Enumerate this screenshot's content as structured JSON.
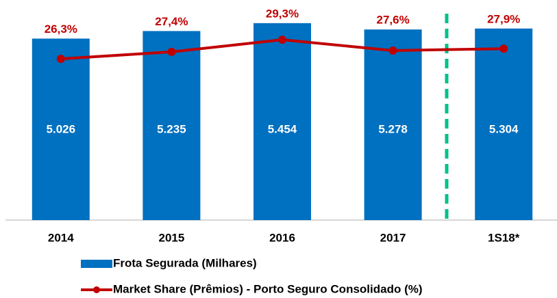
{
  "chart_data": {
    "type": "bar_line",
    "categories": [
      "2014",
      "2015",
      "2016",
      "2017",
      "1S18*"
    ],
    "series": [
      {
        "name": "Frota Segurada (Milhares)",
        "type": "bar",
        "color": "#0070c0",
        "values": [
          5026,
          5235,
          5454,
          5278,
          5304
        ],
        "value_labels": [
          "5.026",
          "5.235",
          "5.454",
          "5.278",
          "5.304"
        ]
      },
      {
        "name": "Market Share (Prêmios) - Porto Seguro Consolidado (%)",
        "type": "line",
        "axis": "y2",
        "color": "#c00000",
        "values": [
          26.3,
          27.4,
          29.3,
          27.6,
          27.9
        ],
        "value_labels": [
          "26,3%",
          "27,4%",
          "29,3%",
          "27,6%",
          "27,9%"
        ]
      }
    ],
    "ylim": [
      0,
      6000
    ],
    "y2lim": [
      1,
      35
    ],
    "legend": "bottom"
  }
}
